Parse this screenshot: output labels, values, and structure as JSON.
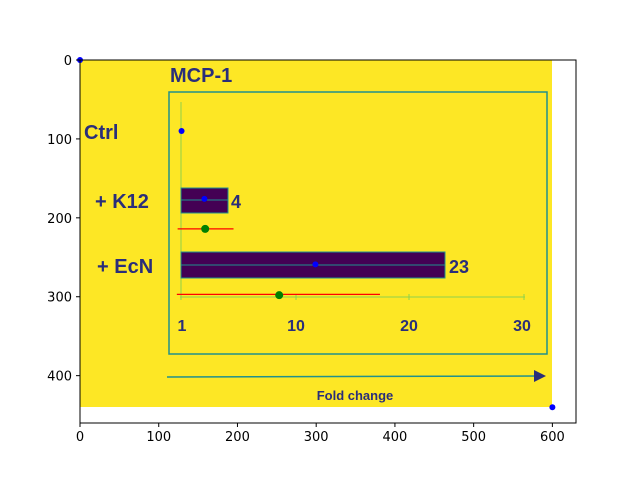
{
  "chart_data": {
    "type": "image",
    "x_ticks": [
      "0",
      "100",
      "200",
      "300",
      "400",
      "500",
      "600"
    ],
    "y_ticks": [
      "0",
      "100",
      "200",
      "300",
      "400"
    ],
    "xlim": [
      0,
      630
    ],
    "ylim": [
      460,
      0
    ],
    "grid": false,
    "embedded_figure": {
      "title": "MCP-1",
      "row_labels": [
        "Ctrl",
        "+ K12",
        "+ EcN"
      ],
      "bars": [
        {
          "label": "+ K12",
          "value": 4
        },
        {
          "label": "+ EcN",
          "value": 23
        }
      ],
      "axis_ticks": [
        "1",
        "10",
        "20",
        "30"
      ],
      "axis_label": "Fold change"
    },
    "overlay_points": [
      {
        "x": 0,
        "y": 0,
        "color": "#0000ff"
      },
      {
        "x": 600,
        "y": 440,
        "color": "#0000ff"
      },
      {
        "x": 129,
        "y": 90,
        "color": "#0000ff"
      },
      {
        "x": 158,
        "y": 176,
        "color": "#0000ff"
      },
      {
        "x": 299,
        "y": 259,
        "color": "#0000ff"
      },
      {
        "x": 159,
        "y": 214,
        "color": "#008000"
      },
      {
        "x": 253,
        "y": 298,
        "color": "#008000"
      }
    ],
    "overlay_segments": [
      {
        "x1": 124,
        "x2": 195,
        "y": 214,
        "color": "#ff0000"
      },
      {
        "x1": 123,
        "x2": 381,
        "y": 297,
        "color": "#ff0000"
      }
    ]
  },
  "colors": {
    "image_bg": "#fde725",
    "bar_fill": "#440154",
    "frame": "#21918c",
    "text": "#2a2e7a"
  }
}
